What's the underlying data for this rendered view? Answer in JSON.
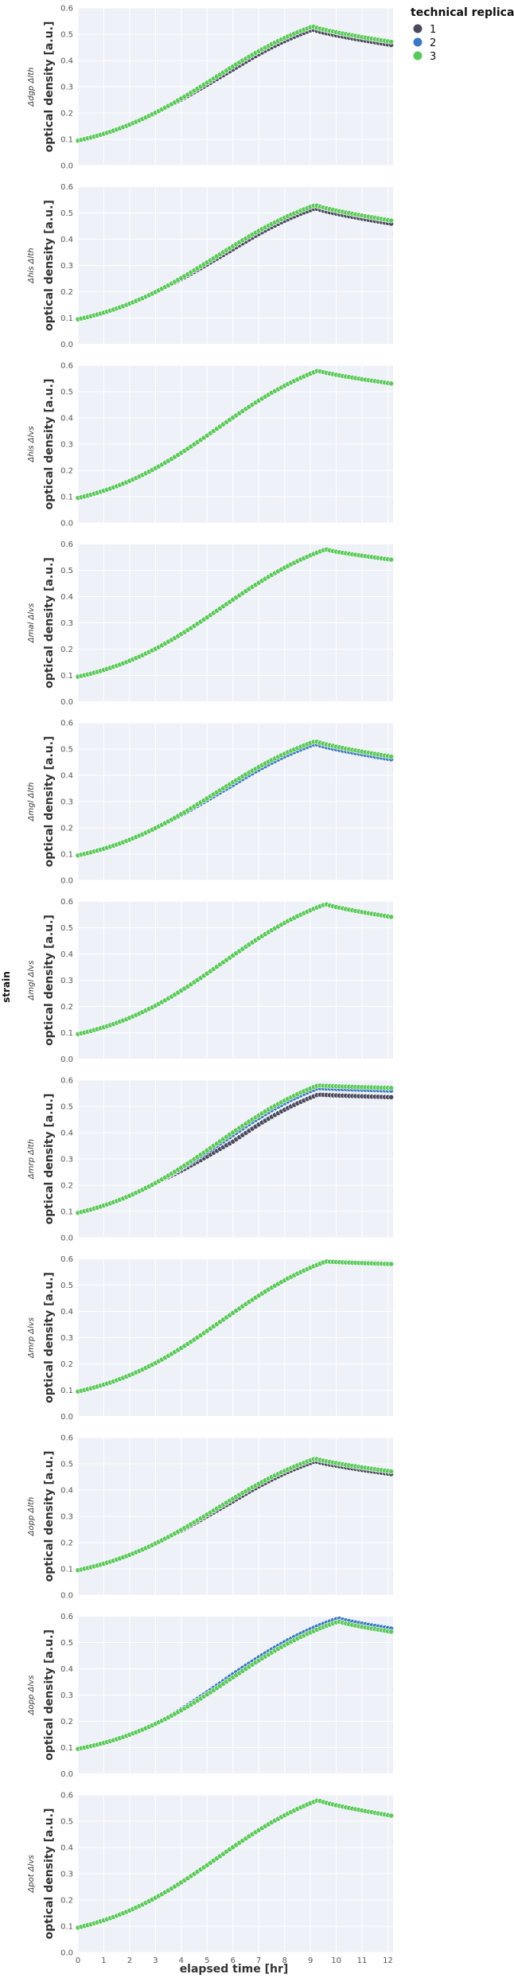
{
  "figure": {
    "strain_group_label": "strain",
    "ylabel": "optical density [a.u.]",
    "xlabel": "elapsed time [hr]"
  },
  "legend": {
    "title": "technical replicate",
    "placement": "top-right",
    "entries": [
      {
        "label": "1",
        "color": "#4a4a5e"
      },
      {
        "label": "2",
        "color": "#3a78c2"
      },
      {
        "label": "3",
        "color": "#5cc85c"
      }
    ]
  },
  "colors": {
    "plot_bg": "#eef1f7",
    "grid": "#ffffff",
    "marker_edge": "#ffffff"
  },
  "chart_data": {
    "type": "scatter",
    "xlim": [
      0,
      12.2
    ],
    "ylim": [
      0,
      0.6
    ],
    "xticks": [
      0,
      1,
      2,
      3,
      4,
      5,
      6,
      7,
      8,
      9,
      10,
      11,
      12
    ],
    "yticks": [
      0.0,
      0.1,
      0.2,
      0.3,
      0.4,
      0.5,
      0.6
    ],
    "grid": true,
    "x_tick_labels_on": "bottom panel only",
    "panels": [
      {
        "strain": "Δdgp Δlth",
        "tpeak": 9.1,
        "ymax": 0.53,
        "yend": 0.47,
        "offsets": [
          -0.012,
          0,
          0
        ]
      },
      {
        "strain": "Δhis Δlth",
        "tpeak": 9.2,
        "ymax": 0.53,
        "yend": 0.47,
        "offsets": [
          -0.012,
          0,
          0
        ]
      },
      {
        "strain": "Δhis Δlvs",
        "tpeak": 9.3,
        "ymax": 0.58,
        "yend": 0.53,
        "offsets": [
          0,
          0,
          0
        ]
      },
      {
        "strain": "Δmal Δlvs",
        "tpeak": 9.6,
        "ymax": 0.58,
        "yend": 0.54,
        "offsets": [
          0,
          0,
          0
        ]
      },
      {
        "strain": "Δmgl Δlth",
        "tpeak": 9.2,
        "ymax": 0.53,
        "yend": 0.47,
        "offsets": [
          -0.012,
          -0.01,
          0
        ]
      },
      {
        "strain": "Δmgl Δlvs",
        "tpeak": 9.6,
        "ymax": 0.59,
        "yend": 0.54,
        "offsets": [
          0,
          0,
          0
        ]
      },
      {
        "strain": "Δmrp Δlth",
        "tpeak": 9.3,
        "ymax": 0.58,
        "yend": 0.57,
        "offsets": [
          -0.035,
          -0.01,
          0
        ]
      },
      {
        "strain": "Δmrp Δlvs",
        "tpeak": 9.6,
        "ymax": 0.59,
        "yend": 0.58,
        "offsets": [
          0,
          0,
          0
        ]
      },
      {
        "strain": "Δopp Δlth",
        "tpeak": 9.2,
        "ymax": 0.52,
        "yend": 0.47,
        "offsets": [
          -0.01,
          0,
          0
        ]
      },
      {
        "strain": "Δopp Δlvs",
        "tpeak": 10.1,
        "ymax": 0.58,
        "yend": 0.54,
        "offsets": [
          0,
          0.012,
          0
        ]
      },
      {
        "strain": "Δpot Δlvs",
        "tpeak": 9.3,
        "ymax": 0.58,
        "yend": 0.52,
        "offsets": [
          0,
          0,
          0
        ]
      }
    ]
  }
}
